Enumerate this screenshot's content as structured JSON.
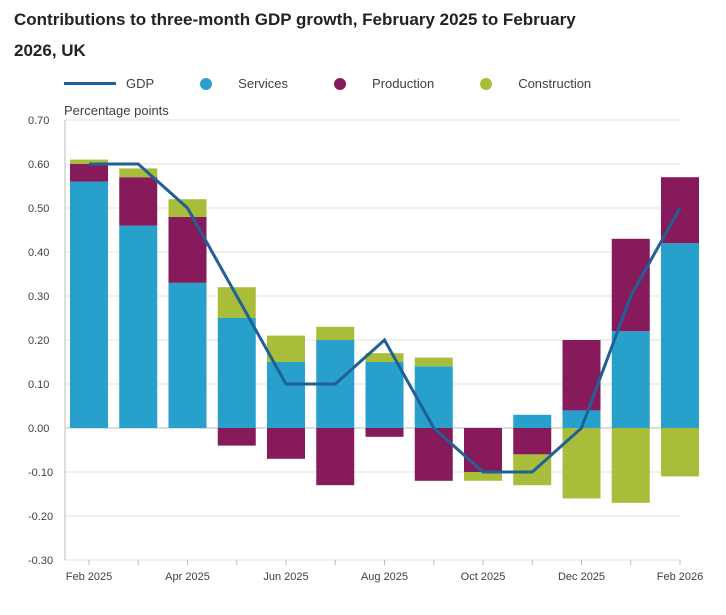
{
  "chart_data": {
    "type": "bar",
    "stacked": true,
    "title": "Contributions to three-month GDP growth, February 2025 to February 2026, UK",
    "ylabel": "Percentage points",
    "ylim": [
      -0.3,
      0.7
    ],
    "yticks": [
      "-0.30",
      "-0.20",
      "-0.10",
      "0.00",
      "0.10",
      "0.20",
      "0.30",
      "0.40",
      "0.50",
      "0.60",
      "0.70"
    ],
    "categories": [
      "Feb 2025",
      "Mar 2025",
      "Apr 2025",
      "May 2025",
      "Jun 2025",
      "Jul 2025",
      "Aug 2025",
      "Sep 2025",
      "Oct 2025",
      "Nov 2025",
      "Dec 2025",
      "Jan 2026",
      "Feb 2026"
    ],
    "xtick_labels": [
      "Feb 2025",
      "",
      "Apr 2025",
      "",
      "Jun 2025",
      "",
      "Aug 2025",
      "",
      "Oct 2025",
      "",
      "Dec 2025",
      "",
      "Feb 2026"
    ],
    "grid": true,
    "legend_position": "top-left",
    "series": [
      {
        "name": "Services",
        "color": "#27a0cc",
        "values": [
          0.56,
          0.46,
          0.33,
          0.25,
          0.15,
          0.2,
          0.15,
          0.14,
          0.0,
          0.03,
          0.04,
          0.22,
          0.42
        ]
      },
      {
        "name": "Production",
        "color": "#871a5b",
        "values": [
          0.04,
          0.11,
          0.15,
          -0.04,
          -0.07,
          -0.13,
          -0.02,
          -0.12,
          -0.1,
          -0.06,
          0.16,
          0.21,
          0.15
        ]
      },
      {
        "name": "Construction",
        "color": "#a8bd3a",
        "values": [
          0.01,
          0.02,
          0.04,
          0.07,
          0.06,
          0.03,
          0.02,
          0.02,
          -0.02,
          -0.07,
          -0.16,
          -0.17,
          -0.11
        ]
      }
    ],
    "line": {
      "name": "GDP",
      "color": "#206095",
      "values": [
        0.6,
        0.6,
        0.5,
        0.3,
        0.1,
        0.1,
        0.2,
        0.0,
        -0.1,
        -0.1,
        0.0,
        0.3,
        0.5
      ]
    }
  }
}
